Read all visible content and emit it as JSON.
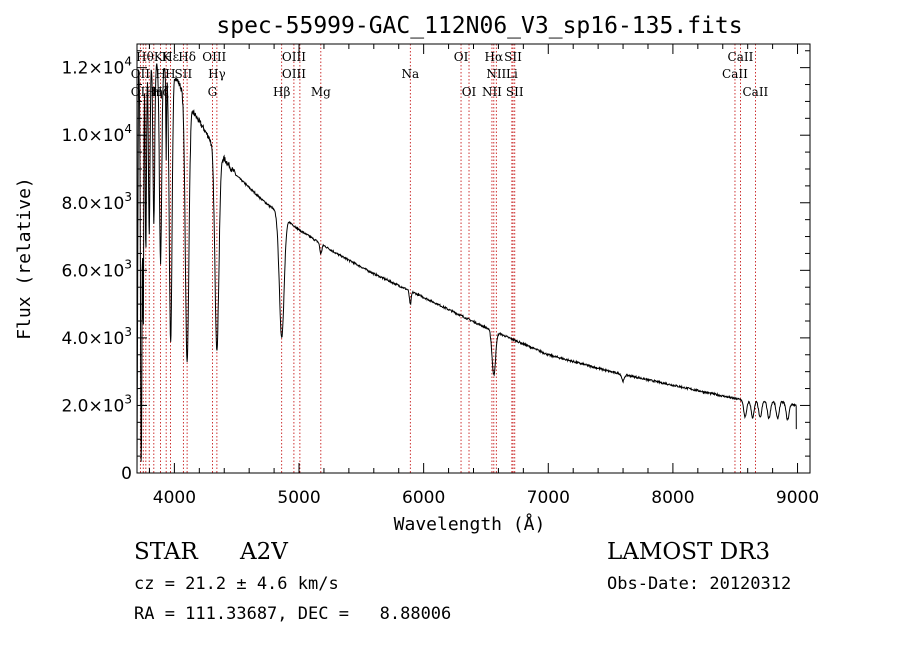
{
  "chart_data": {
    "type": "line",
    "title": "spec-55999-GAC_112N06_V3_sp16-135.fits",
    "xlabel": "Wavelength (Å)",
    "ylabel": "Flux (relative)",
    "xlim": [
      3700,
      9100
    ],
    "ylim": [
      0,
      12700
    ],
    "x_ticks": [
      {
        "value": 4000,
        "label": "4000"
      },
      {
        "value": 5000,
        "label": "5000"
      },
      {
        "value": 6000,
        "label": "6000"
      },
      {
        "value": 7000,
        "label": "7000"
      },
      {
        "value": 8000,
        "label": "8000"
      },
      {
        "value": 9000,
        "label": "9000"
      }
    ],
    "y_ticks": [
      {
        "value": 0,
        "mant": "0",
        "exp": ""
      },
      {
        "value": 2000,
        "mant": "2.0×10",
        "exp": "3"
      },
      {
        "value": 4000,
        "mant": "4.0×10",
        "exp": "3"
      },
      {
        "value": 6000,
        "mant": "6.0×10",
        "exp": "3"
      },
      {
        "value": 8000,
        "mant": "8.0×10",
        "exp": "3"
      },
      {
        "value": 10000,
        "mant": "1.0×10",
        "exp": "4"
      },
      {
        "value": 12000,
        "mant": "1.2×10",
        "exp": "4"
      }
    ],
    "spectral_lines": [
      {
        "label": "Hε",
        "wave": 3970,
        "row": 0
      },
      {
        "label": "OII",
        "wave": 3727,
        "row": 1
      },
      {
        "label": "OII",
        "wave": 3727,
        "row": 2
      },
      {
        "label": "HθK",
        "wave": 3800,
        "row": 0
      },
      {
        "label": "Hη",
        "wave": 3835,
        "row": 2
      },
      {
        "label": "H",
        "wave": 3889,
        "row": 1
      },
      {
        "label": "K",
        "wave": 3934,
        "row": 0
      },
      {
        "label": "H",
        "wave": 3968,
        "row": 1
      },
      {
        "label": "Hζ",
        "wave": 3889,
        "row": 2
      },
      {
        "label": "SII",
        "wave": 4072,
        "row": 1
      },
      {
        "label": "Hδ",
        "wave": 4102,
        "row": 0
      },
      {
        "label": "OIII",
        "wave": 4320,
        "row": 0
      },
      {
        "label": "Hγ",
        "wave": 4341,
        "row": 1
      },
      {
        "label": "G",
        "wave": 4305,
        "row": 2
      },
      {
        "label": "OIII",
        "wave": 4959,
        "row": 0
      },
      {
        "label": "OIII",
        "wave": 4959,
        "row": 1
      },
      {
        "label": "Hβ",
        "wave": 4861,
        "row": 2
      },
      {
        "label": "Mg",
        "wave": 5175,
        "row": 2
      },
      {
        "label": "Na",
        "wave": 5893,
        "row": 1
      },
      {
        "label": "OI",
        "wave": 6300,
        "row": 0
      },
      {
        "label": "OI",
        "wave": 6364,
        "row": 2
      },
      {
        "label": "Hα",
        "wave": 6563,
        "row": 0
      },
      {
        "label": "SII",
        "wave": 6717,
        "row": 0
      },
      {
        "label": "NII",
        "wave": 6583,
        "row": 1
      },
      {
        "label": "Li",
        "wave": 6708,
        "row": 1
      },
      {
        "label": "NII",
        "wave": 6548,
        "row": 2
      },
      {
        "label": "SII",
        "wave": 6731,
        "row": 2
      },
      {
        "label": "CaII",
        "wave": 8542,
        "row": 0
      },
      {
        "label": "CaII",
        "wave": 8498,
        "row": 1
      },
      {
        "label": "CaII",
        "wave": 8662,
        "row": 2
      }
    ],
    "line_marker_waves": [
      3727,
      3750,
      3771,
      3798,
      3835,
      3889,
      3934,
      3968,
      4072,
      4102,
      4305,
      4341,
      4861,
      4959,
      5007,
      5175,
      5893,
      6300,
      6364,
      6548,
      6563,
      6583,
      6708,
      6717,
      6731,
      8498,
      8542,
      8662
    ],
    "spectrum": {
      "continuum": [
        [
          3700,
          11900
        ],
        [
          3850,
          12100
        ],
        [
          4000,
          11800
        ],
        [
          4150,
          10700
        ],
        [
          4300,
          9800
        ],
        [
          4500,
          8800
        ],
        [
          4700,
          8100
        ],
        [
          5000,
          7200
        ],
        [
          5300,
          6500
        ],
        [
          5600,
          5900
        ],
        [
          6000,
          5200
        ],
        [
          6500,
          4300
        ],
        [
          7000,
          3500
        ],
        [
          7500,
          3000
        ],
        [
          8000,
          2600
        ],
        [
          8500,
          2200
        ],
        [
          8600,
          2150
        ],
        [
          8900,
          2100
        ],
        [
          8990,
          2000
        ]
      ],
      "absorption": [
        {
          "center": 3734,
          "depth": 11800,
          "width": 6
        },
        {
          "center": 3750,
          "depth": 7500,
          "width": 4
        },
        {
          "center": 3771,
          "depth": 5500,
          "width": 5
        },
        {
          "center": 3798,
          "depth": 5000,
          "width": 6
        },
        {
          "center": 3835,
          "depth": 4700,
          "width": 7
        },
        {
          "center": 3889,
          "depth": 5800,
          "width": 9
        },
        {
          "center": 3934,
          "depth": 2600,
          "width": 3
        },
        {
          "center": 3970,
          "depth": 8000,
          "width": 11
        },
        {
          "center": 4102,
          "depth": 7800,
          "width": 14
        },
        {
          "center": 4341,
          "depth": 5900,
          "width": 16
        },
        {
          "center": 4861,
          "depth": 3600,
          "width": 19
        },
        {
          "center": 5175,
          "depth": 300,
          "width": 8
        },
        {
          "center": 5893,
          "depth": 400,
          "width": 7
        },
        {
          "center": 6563,
          "depth": 1300,
          "width": 14
        },
        {
          "center": 7600,
          "depth": 200,
          "width": 10
        }
      ],
      "ca_triplet_dips": [
        8580,
        8640,
        8700,
        8770,
        8840,
        8920
      ],
      "ca_dip_depth": 500,
      "noise_amplitude": 60
    }
  },
  "info": {
    "object_type": "STAR",
    "spectral_class": "A2V",
    "survey": "LAMOST DR3",
    "redshift": "cz = 21.2 ± 4.6 km/s",
    "obs_date": "Obs-Date: 20120312",
    "coords": "RA = 111.33687, DEC =   8.88006"
  },
  "colors": {
    "spectrum": "#000000",
    "marker": "#c00000",
    "axis": "#000000"
  }
}
